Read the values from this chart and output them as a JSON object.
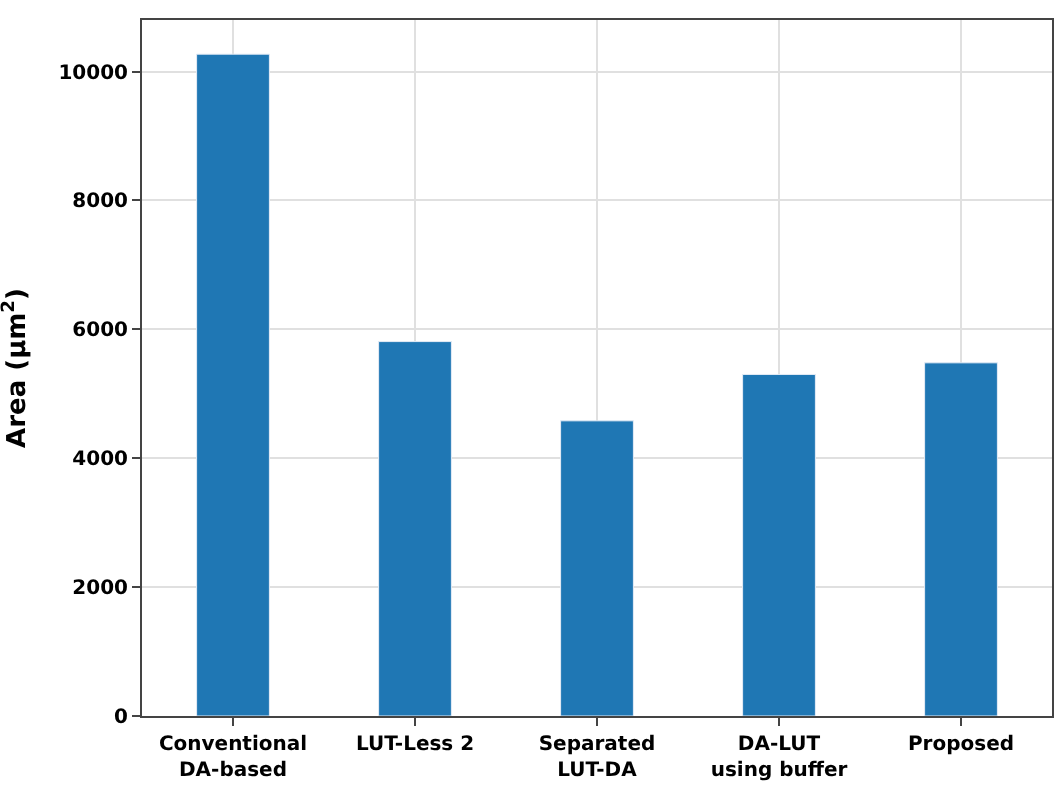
{
  "chart_data": {
    "type": "bar",
    "ylabel": "Area (µm$^{2}$)",
    "categories": [
      "Conventional\nDA-based",
      "LUT-Less 2",
      "Separated\nLUT-DA",
      "DA-LUT\nusing buffer",
      "Proposed"
    ],
    "values": [
      10270,
      5810,
      4580,
      5300,
      5480
    ],
    "color": "#1f77b4",
    "ylim": [
      0,
      10800
    ],
    "yticks": [
      0,
      2000,
      4000,
      6000,
      8000,
      10000
    ],
    "grid": true
  }
}
